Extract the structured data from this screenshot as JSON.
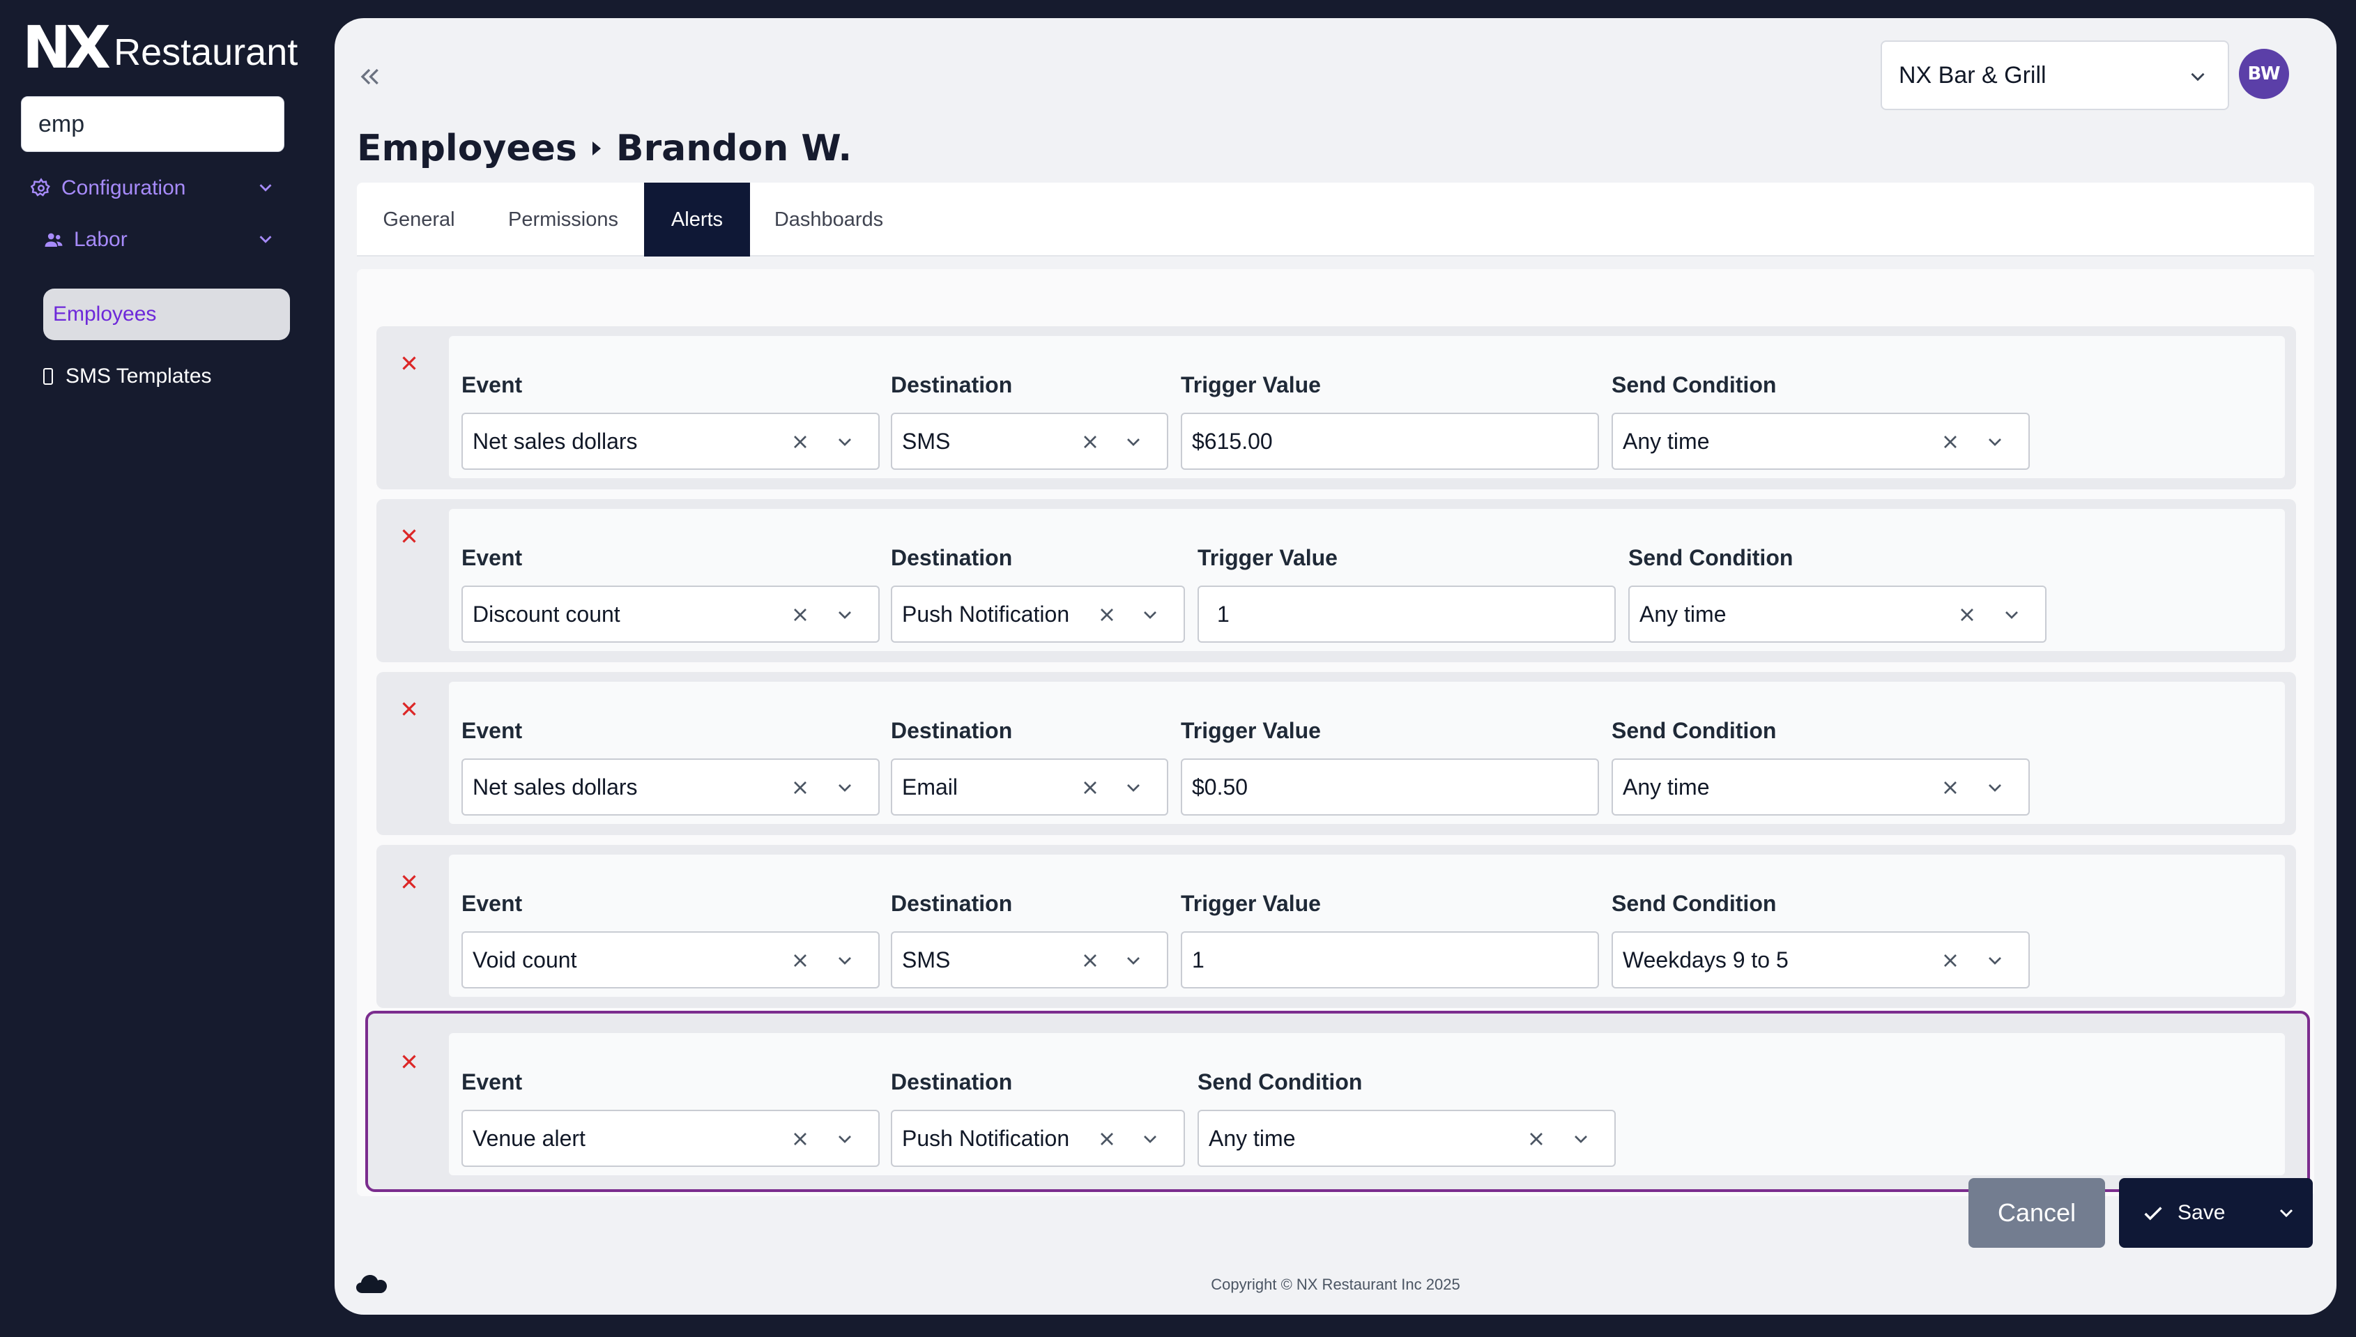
{
  "sidebar": {
    "logo_mark": "NX",
    "logo_text": "Restaurant",
    "search_value": "emp",
    "groups": [
      {
        "label": "Configuration",
        "icon": "gear-icon"
      },
      {
        "label": "Labor",
        "icon": "users-icon"
      }
    ],
    "items": [
      {
        "label": "Employees",
        "active": true
      },
      {
        "label": "SMS Templates",
        "icon": "phone-icon"
      }
    ]
  },
  "header": {
    "venue": "NX Bar & Grill",
    "avatar_initials": "BW",
    "breadcrumb": [
      "Employees",
      "Brandon W."
    ]
  },
  "tabs": [
    {
      "label": "General",
      "active": false
    },
    {
      "label": "Permissions",
      "active": false
    },
    {
      "label": "Alerts",
      "active": true
    },
    {
      "label": "Dashboards",
      "active": false
    }
  ],
  "field_labels": {
    "event": "Event",
    "destination": "Destination",
    "trigger_value": "Trigger Value",
    "send_condition": "Send Condition"
  },
  "alerts": [
    {
      "event": "Net sales dollars",
      "destination": "SMS",
      "trigger_value": "$615.00",
      "send_condition": "Any time"
    },
    {
      "event": "Discount count",
      "destination": "Push Notification",
      "trigger_value": "1",
      "send_condition": "Any time"
    },
    {
      "event": "Net sales dollars",
      "destination": "Email",
      "trigger_value": "$0.50",
      "send_condition": "Any time"
    },
    {
      "event": "Void count",
      "destination": "SMS",
      "trigger_value": "1",
      "send_condition": "Weekdays 9 to 5"
    },
    {
      "event": "Venue alert",
      "destination": "Push Notification",
      "send_condition": "Any time",
      "highlighted": true
    }
  ],
  "actions": {
    "cancel": "Cancel",
    "save": "Save"
  },
  "footer": {
    "copyright": "Copyright © NX Restaurant Inc 2025"
  },
  "colors": {
    "sidebar_bg": "#161b2e",
    "accent": "#a78bfa",
    "active_tab": "#0f1836",
    "delete_x": "#dc2626",
    "highlight_border": "#7b2d8e"
  }
}
